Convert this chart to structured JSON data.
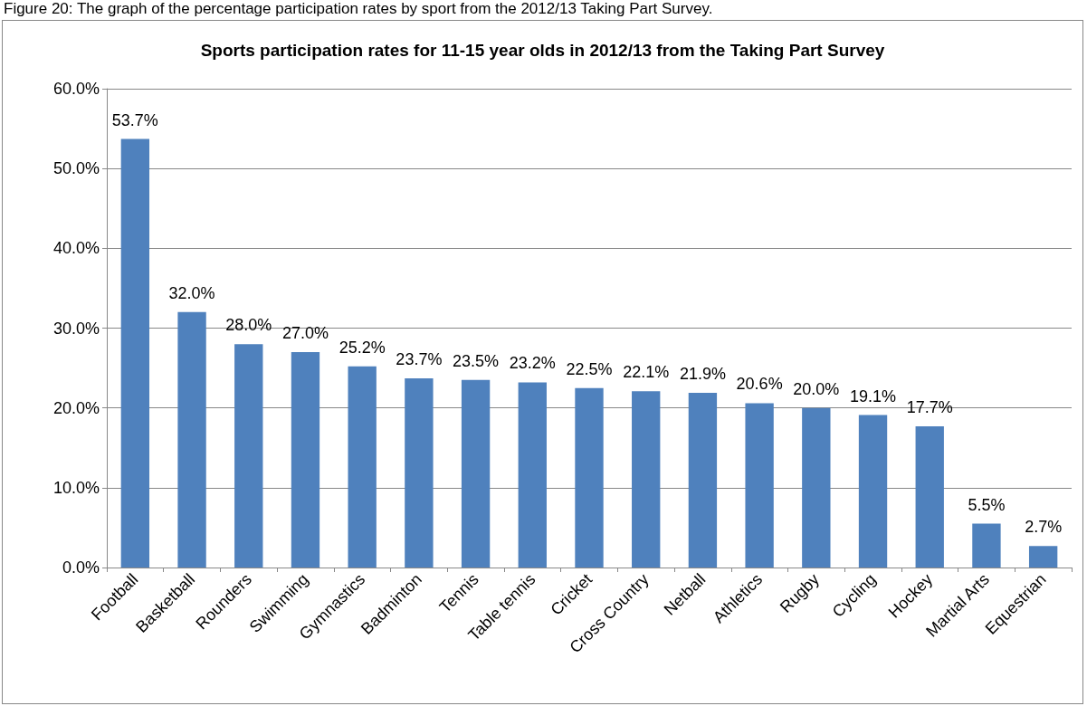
{
  "chart_data": {
    "type": "bar",
    "title": "Sports participation rates for 11-15 year olds in 2012/13 from the Taking Part Survey",
    "annotations": [
      "Figure 20: The graph of the percentage participation rates by sport from the 2012/13 Taking Part Survey."
    ],
    "categories": [
      "Football",
      "Basketball",
      "Rounders",
      "Swimming",
      "Gymnastics",
      "Badminton",
      "Tennis",
      "Table tennis",
      "Cricket",
      "Cross Country",
      "Netball",
      "Athletics",
      "Rugby",
      "Cycling",
      "Hockey",
      "Martial Arts",
      "Equestrian"
    ],
    "values": [
      53.7,
      32.0,
      28.0,
      27.0,
      25.2,
      23.7,
      23.5,
      23.2,
      22.5,
      22.1,
      21.9,
      20.6,
      20.0,
      19.1,
      17.7,
      5.5,
      2.7
    ],
    "value_labels": [
      "53.7%",
      "32.0%",
      "28.0%",
      "27.0%",
      "25.2%",
      "23.7%",
      "23.5%",
      "23.2%",
      "22.5%",
      "22.1%",
      "21.9%",
      "20.6%",
      "20.0%",
      "19.1%",
      "17.7%",
      "5.5%",
      "2.7%"
    ],
    "color": "#4f81bd",
    "ylim": [
      0,
      60
    ],
    "yticks": [
      {
        "value": 0,
        "label": "0.0%"
      },
      {
        "value": 10,
        "label": "10.0%"
      },
      {
        "value": 20,
        "label": "20.0%"
      },
      {
        "value": 30,
        "label": "30.0%"
      },
      {
        "value": 40,
        "label": "40.0%"
      },
      {
        "value": 50,
        "label": "50.0%"
      },
      {
        "value": 60,
        "label": "60.0%"
      }
    ],
    "grid": "y"
  }
}
